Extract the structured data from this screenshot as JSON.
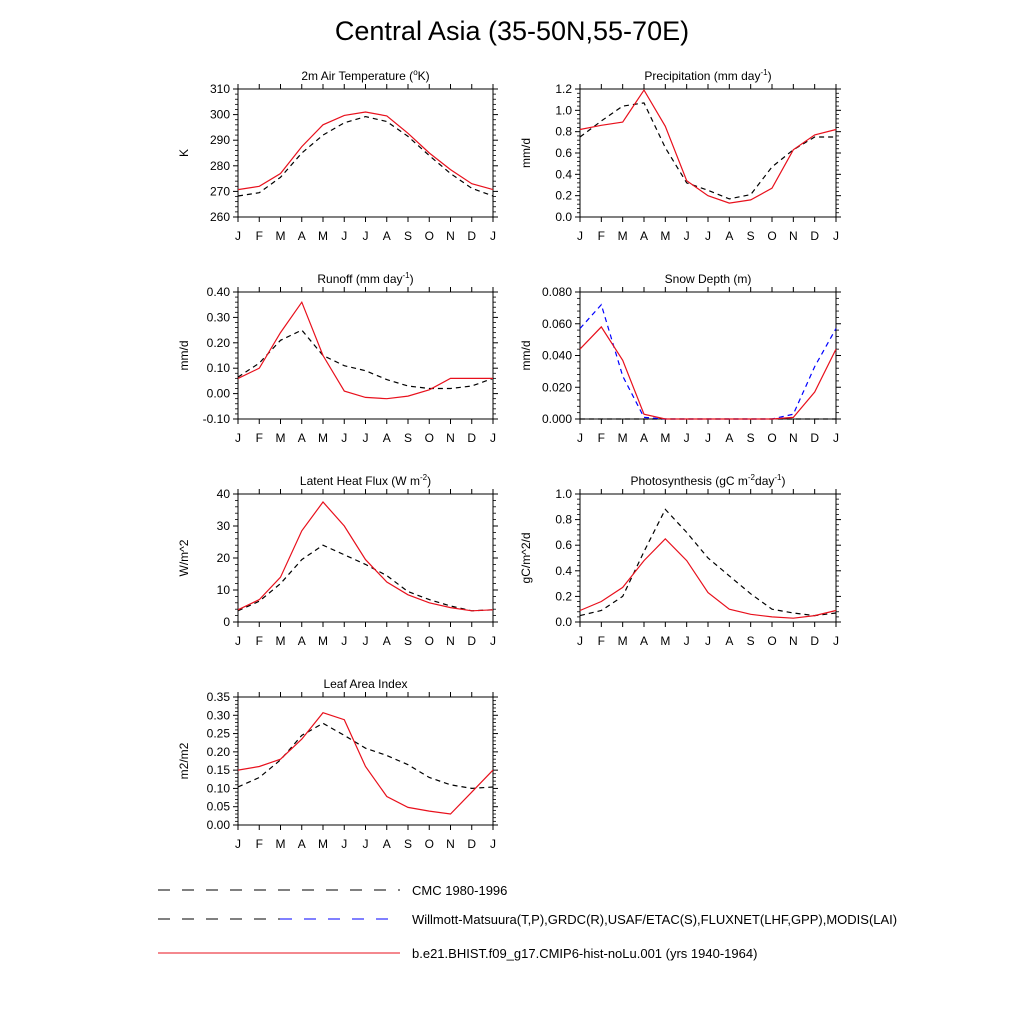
{
  "figure_title": "Central Asia (35-50N,55-70E)",
  "legend": {
    "entries": [
      {
        "label": "CMC 1980-1996",
        "style": "dashed",
        "colors": [
          "#000000"
        ]
      },
      {
        "label": "Willmott-Matsuura(T,P),GRDC(R),USAF/ETAC(S),FLUXNET(LHF,GPP),MODIS(LAI)",
        "style": "dashed",
        "colors": [
          "#000000",
          "#0000ff"
        ]
      },
      {
        "label": "b.e21.BHIST.f09_g17.CMIP6-hist-noLu.001 (yrs 1940-1964)",
        "style": "solid",
        "colors": [
          "#e8101c"
        ]
      }
    ]
  },
  "colors": {
    "model": "#e8101c",
    "obs": "#000000",
    "obs_snow": "#0000ff"
  },
  "chart_data": [
    {
      "type": "line",
      "title": "2m Air Temperature (°K)",
      "title_parts": [
        [
          "2m Air Temperature (",
          "n"
        ],
        [
          "o",
          "sup"
        ],
        [
          "K)",
          "n"
        ]
      ],
      "ylabel": "K",
      "ylim": [
        260,
        310
      ],
      "yticks": [
        260,
        270,
        280,
        290,
        300,
        310
      ],
      "ytick_labels": [
        "260",
        "270",
        "280",
        "290",
        "300",
        "310"
      ],
      "x": [
        "J",
        "F",
        "M",
        "A",
        "M",
        "J",
        "J",
        "A",
        "S",
        "O",
        "N",
        "D",
        "J"
      ],
      "series": [
        {
          "values": [
            268.2,
            269.5,
            275.5,
            285.0,
            292.0,
            296.8,
            299.2,
            297.3,
            291.5,
            284.0,
            277.0,
            271.2,
            268.2
          ],
          "color": "#000000",
          "style": "dashed"
        },
        {
          "values": [
            270.7,
            272.0,
            277.0,
            287.5,
            296.0,
            299.7,
            301.0,
            299.5,
            292.7,
            285.0,
            278.5,
            273.0,
            270.7
          ],
          "color": "#e8101c",
          "style": "solid"
        }
      ]
    },
    {
      "type": "line",
      "title": "Precipitation (mm day-1)",
      "title_parts": [
        [
          "Precipitation (mm day",
          "n"
        ],
        [
          "-1",
          "sup"
        ],
        [
          ")",
          "n"
        ]
      ],
      "ylabel": "mm/d",
      "ylim": [
        0,
        1.2
      ],
      "yticks": [
        0,
        0.2,
        0.4,
        0.6,
        0.8,
        1.0,
        1.2
      ],
      "ytick_labels": [
        "0.0",
        "0.2",
        "0.4",
        "0.6",
        "0.8",
        "1.0",
        "1.2"
      ],
      "x": [
        "J",
        "F",
        "M",
        "A",
        "M",
        "J",
        "J",
        "A",
        "S",
        "O",
        "N",
        "D",
        "J"
      ],
      "series": [
        {
          "values": [
            0.75,
            0.9,
            1.04,
            1.07,
            0.65,
            0.32,
            0.25,
            0.17,
            0.21,
            0.47,
            0.63,
            0.75,
            0.75
          ],
          "color": "#000000",
          "style": "dashed"
        },
        {
          "values": [
            0.82,
            0.86,
            0.89,
            1.19,
            0.85,
            0.34,
            0.2,
            0.13,
            0.16,
            0.27,
            0.63,
            0.77,
            0.82
          ],
          "color": "#e8101c",
          "style": "solid"
        }
      ]
    },
    {
      "type": "line",
      "title": "Runoff (mm day-1)",
      "title_parts": [
        [
          "Runoff (mm day",
          "n"
        ],
        [
          "-1",
          "sup"
        ],
        [
          ")",
          "n"
        ]
      ],
      "ylabel": "mm/d",
      "ylim": [
        -0.1,
        0.4
      ],
      "yticks": [
        -0.1,
        0,
        0.1,
        0.2,
        0.3,
        0.4
      ],
      "ytick_labels": [
        "-0.10",
        "0.00",
        "0.10",
        "0.20",
        "0.30",
        "0.40"
      ],
      "x": [
        "J",
        "F",
        "M",
        "A",
        "M",
        "J",
        "J",
        "A",
        "S",
        "O",
        "N",
        "D",
        "J"
      ],
      "series": [
        {
          "values": [
            0.065,
            0.12,
            0.21,
            0.25,
            0.15,
            0.11,
            0.09,
            0.055,
            0.03,
            0.02,
            0.02,
            0.03,
            0.06
          ],
          "color": "#000000",
          "style": "dashed"
        },
        {
          "values": [
            0.06,
            0.1,
            0.24,
            0.36,
            0.15,
            0.01,
            -0.015,
            -0.02,
            -0.01,
            0.015,
            0.06,
            0.06,
            0.06
          ],
          "color": "#e8101c",
          "style": "solid"
        }
      ]
    },
    {
      "type": "line",
      "title": "Snow Depth (m)",
      "title_parts": [
        [
          "Snow Depth (m)",
          "n"
        ]
      ],
      "ylabel": "mm/d",
      "ylim": [
        0,
        0.08
      ],
      "yticks": [
        0,
        0.02,
        0.04,
        0.06,
        0.08
      ],
      "ytick_labels": [
        "0.000",
        "0.020",
        "0.040",
        "0.060",
        "0.080"
      ],
      "x": [
        "J",
        "F",
        "M",
        "A",
        "M",
        "J",
        "J",
        "A",
        "S",
        "O",
        "N",
        "D",
        "J"
      ],
      "series": [
        {
          "values": [
            0,
            0,
            0,
            0,
            0,
            0,
            0,
            0,
            0,
            0,
            0,
            0,
            0
          ],
          "color": "#000000",
          "style": "dashed"
        },
        {
          "values": [
            0.057,
            0.072,
            0.027,
            0.001,
            0,
            0,
            0,
            0,
            0,
            0,
            0.003,
            0.033,
            0.057
          ],
          "color": "#0000ff",
          "style": "dashed"
        },
        {
          "values": [
            0.044,
            0.058,
            0.037,
            0.003,
            0,
            0,
            0,
            0,
            0,
            0,
            0.001,
            0.017,
            0.044
          ],
          "color": "#e8101c",
          "style": "solid"
        }
      ]
    },
    {
      "type": "line",
      "title": "Latent Heat Flux (W m-2)",
      "title_parts": [
        [
          "Latent Heat Flux (W m",
          "n"
        ],
        [
          "-2",
          "sup"
        ],
        [
          ")",
          "n"
        ]
      ],
      "ylabel": "W/m^2",
      "ylim": [
        0,
        40
      ],
      "yticks": [
        0,
        10,
        20,
        30,
        40
      ],
      "ytick_labels": [
        "0",
        "10",
        "20",
        "30",
        "40"
      ],
      "x": [
        "J",
        "F",
        "M",
        "A",
        "M",
        "J",
        "J",
        "A",
        "S",
        "O",
        "N",
        "D",
        "J"
      ],
      "series": [
        {
          "values": [
            3.5,
            6.5,
            12.0,
            19.5,
            24.0,
            21.0,
            18.0,
            14.5,
            9.5,
            7.0,
            5.0,
            3.5,
            3.8
          ],
          "color": "#000000",
          "style": "dashed"
        },
        {
          "values": [
            3.8,
            7.0,
            14.0,
            28.5,
            37.5,
            30.0,
            19.5,
            12.5,
            8.5,
            6.0,
            4.5,
            3.5,
            3.8
          ],
          "color": "#e8101c",
          "style": "solid"
        }
      ]
    },
    {
      "type": "line",
      "title": "Photosynthesis (gC m-2day-1)",
      "title_parts": [
        [
          "Photosynthesis (gC m",
          "n"
        ],
        [
          "-2",
          "sup"
        ],
        [
          "day",
          "n"
        ],
        [
          "-1",
          "sup"
        ],
        [
          ")",
          "n"
        ]
      ],
      "ylabel": "gC/m^2/d",
      "ylim": [
        0,
        1.0
      ],
      "yticks": [
        0,
        0.2,
        0.4,
        0.6,
        0.8,
        1.0
      ],
      "ytick_labels": [
        "0.0",
        "0.2",
        "0.4",
        "0.6",
        "0.8",
        "1.0"
      ],
      "x": [
        "J",
        "F",
        "M",
        "A",
        "M",
        "J",
        "J",
        "A",
        "S",
        "O",
        "N",
        "D",
        "J"
      ],
      "series": [
        {
          "values": [
            0.05,
            0.09,
            0.2,
            0.55,
            0.88,
            0.7,
            0.5,
            0.36,
            0.22,
            0.1,
            0.07,
            0.05,
            0.07
          ],
          "color": "#000000",
          "style": "dashed"
        },
        {
          "values": [
            0.09,
            0.16,
            0.27,
            0.48,
            0.65,
            0.48,
            0.23,
            0.1,
            0.06,
            0.04,
            0.03,
            0.05,
            0.09
          ],
          "color": "#e8101c",
          "style": "solid"
        }
      ]
    },
    {
      "type": "line",
      "title": "Leaf Area Index",
      "title_parts": [
        [
          "Leaf Area Index",
          "n"
        ]
      ],
      "ylabel": "m2/m2",
      "ylim": [
        0,
        0.35
      ],
      "yticks": [
        0,
        0.05,
        0.1,
        0.15,
        0.2,
        0.25,
        0.3,
        0.35
      ],
      "ytick_labels": [
        "0.00",
        "0.05",
        "0.10",
        "0.15",
        "0.20",
        "0.25",
        "0.30",
        "0.35"
      ],
      "x": [
        "J",
        "F",
        "M",
        "A",
        "M",
        "J",
        "J",
        "A",
        "S",
        "O",
        "N",
        "D",
        "J"
      ],
      "series": [
        {
          "values": [
            0.104,
            0.13,
            0.178,
            0.245,
            0.278,
            0.245,
            0.21,
            0.19,
            0.165,
            0.13,
            0.11,
            0.1,
            0.104
          ],
          "color": "#000000",
          "style": "dashed"
        },
        {
          "values": [
            0.15,
            0.16,
            0.18,
            0.235,
            0.307,
            0.288,
            0.16,
            0.078,
            0.048,
            0.038,
            0.03,
            0.09,
            0.15
          ],
          "color": "#e8101c",
          "style": "solid"
        }
      ]
    }
  ]
}
